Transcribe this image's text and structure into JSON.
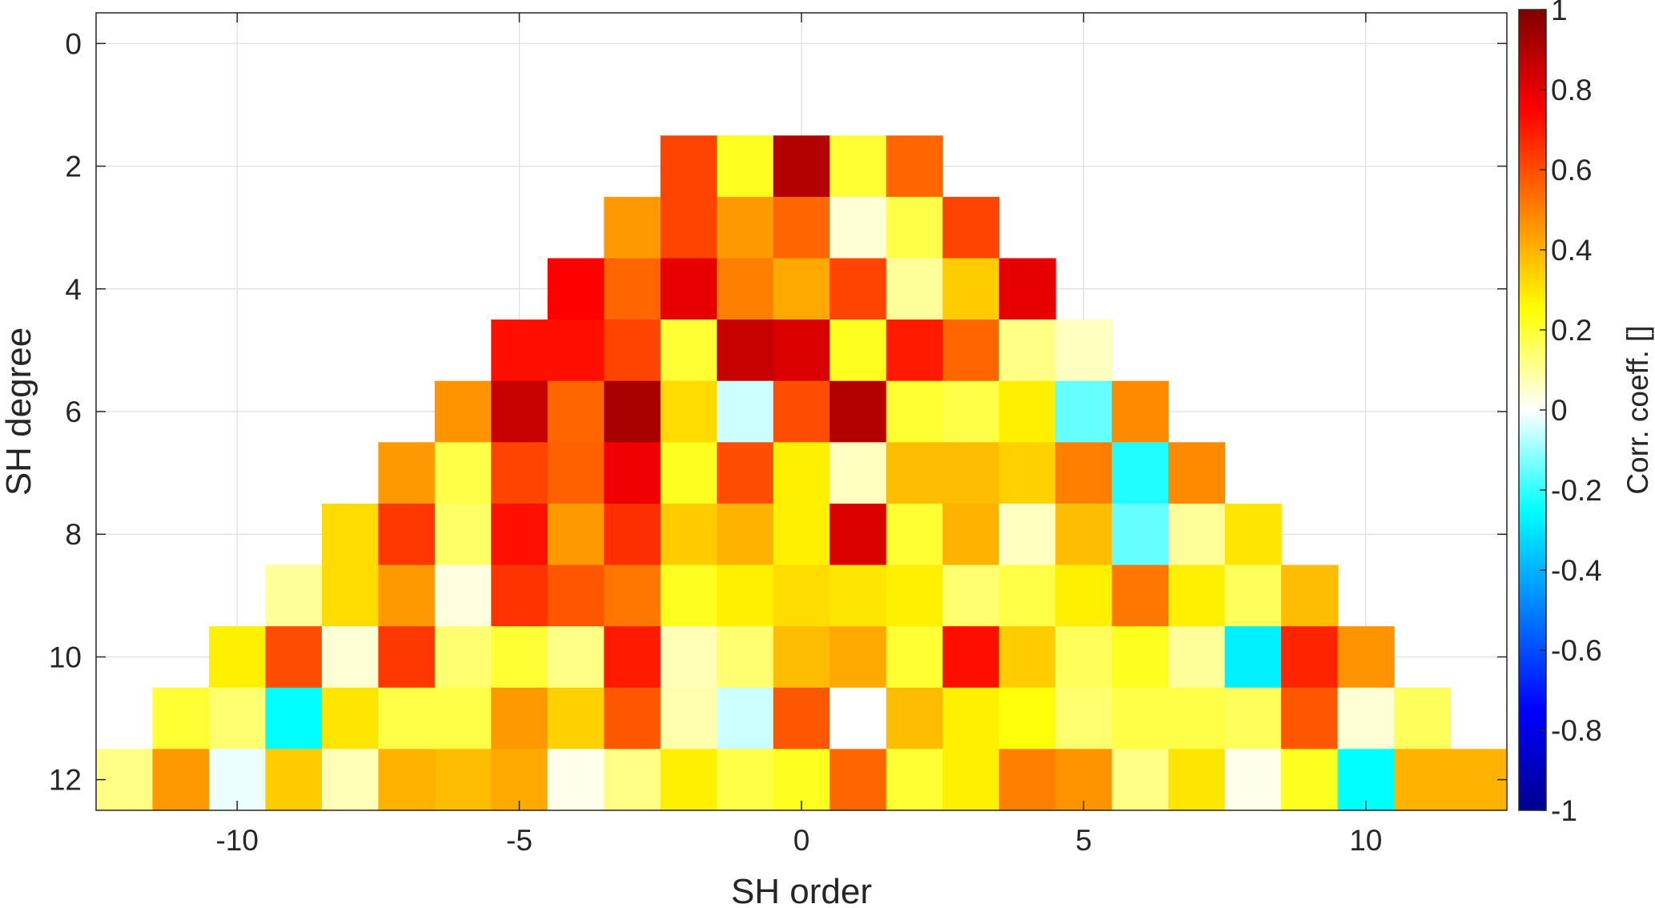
{
  "chart_data": {
    "type": "heatmap",
    "title": "",
    "xlabel": "SH order",
    "ylabel": "SH degree",
    "xlim": [
      -12.5,
      12.5
    ],
    "ylim": [
      -0.5,
      12.5
    ],
    "y_reversed": true,
    "xticks": [
      -10,
      -5,
      0,
      5,
      10
    ],
    "xtick_labels": [
      "-10",
      "-5",
      "0",
      "5",
      "10"
    ],
    "yticks": [
      0,
      2,
      4,
      6,
      8,
      10,
      12
    ],
    "ytick_labels": [
      "0",
      "2",
      "4",
      "6",
      "8",
      "10",
      "12"
    ],
    "grid": true,
    "colormap": "jet-like diverging, white at 0",
    "colorbar": {
      "label": "Corr. coeff. []",
      "range": [
        -1,
        1
      ],
      "ticks": [
        1,
        0.8,
        0.6,
        0.4,
        0.2,
        0,
        -0.2,
        -0.4,
        -0.6,
        -0.8,
        -1
      ],
      "tick_labels": [
        "1",
        "0.8",
        "0.6",
        "0.4",
        "0.2",
        "0",
        "-0.2",
        "-0.4",
        "-0.6",
        "-0.8",
        "-1"
      ]
    },
    "rows": [
      {
        "degree": 2,
        "values": [
          0.62,
          0.22,
          0.9,
          0.2,
          0.55
        ]
      },
      {
        "degree": 3,
        "values": [
          0.45,
          0.62,
          0.45,
          0.55,
          0.04,
          0.18,
          0.62
        ]
      },
      {
        "degree": 4,
        "values": [
          0.75,
          0.55,
          0.8,
          0.5,
          0.42,
          0.62,
          0.1,
          0.35,
          0.8
        ]
      },
      {
        "degree": 5,
        "values": [
          0.72,
          0.72,
          0.62,
          0.2,
          0.86,
          0.82,
          0.22,
          0.7,
          0.55,
          0.12,
          0.06
        ]
      },
      {
        "degree": 6,
        "values": [
          0.46,
          0.86,
          0.55,
          0.92,
          0.32,
          -0.05,
          0.6,
          0.9,
          0.2,
          0.18,
          0.28,
          -0.15,
          0.48
        ]
      },
      {
        "degree": 7,
        "values": [
          0.45,
          0.18,
          0.62,
          0.56,
          0.78,
          0.22,
          0.6,
          0.28,
          0.06,
          0.38,
          0.38,
          0.34,
          0.5,
          -0.22,
          0.48
        ]
      },
      {
        "degree": 8,
        "values": [
          0.32,
          0.64,
          0.15,
          0.72,
          0.45,
          0.66,
          0.35,
          0.4,
          0.28,
          0.82,
          0.2,
          0.4,
          0.06,
          0.38,
          -0.15,
          0.1,
          0.3
        ]
      },
      {
        "degree": 9,
        "values": [
          0.1,
          0.32,
          0.45,
          0.03,
          0.65,
          0.58,
          0.52,
          0.22,
          0.28,
          0.32,
          0.3,
          0.28,
          0.14,
          0.18,
          0.28,
          0.52,
          0.28,
          0.16,
          0.38
        ]
      },
      {
        "degree": 10,
        "values": [
          0.28,
          0.6,
          0.04,
          0.64,
          0.14,
          0.2,
          0.12,
          0.7,
          0.07,
          0.14,
          0.38,
          0.42,
          0.2,
          0.72,
          0.35,
          0.16,
          0.22,
          0.1,
          -0.28,
          0.68,
          0.46
        ]
      },
      {
        "degree": 11,
        "values": [
          0.2,
          0.14,
          -0.25,
          0.3,
          0.18,
          0.18,
          0.45,
          0.34,
          0.58,
          0.08,
          -0.05,
          0.58,
          0.0,
          0.38,
          0.28,
          0.24,
          0.14,
          0.18,
          0.18,
          0.16,
          0.58,
          0.04,
          0.16
        ]
      },
      {
        "degree": 12,
        "values": [
          0.12,
          0.45,
          -0.02,
          0.35,
          0.07,
          0.4,
          0.38,
          0.42,
          0.02,
          0.12,
          0.28,
          0.18,
          0.22,
          0.55,
          0.2,
          0.28,
          0.5,
          0.46,
          0.12,
          0.3,
          0.02,
          0.22,
          -0.25,
          0.4,
          0.4
        ]
      }
    ]
  }
}
